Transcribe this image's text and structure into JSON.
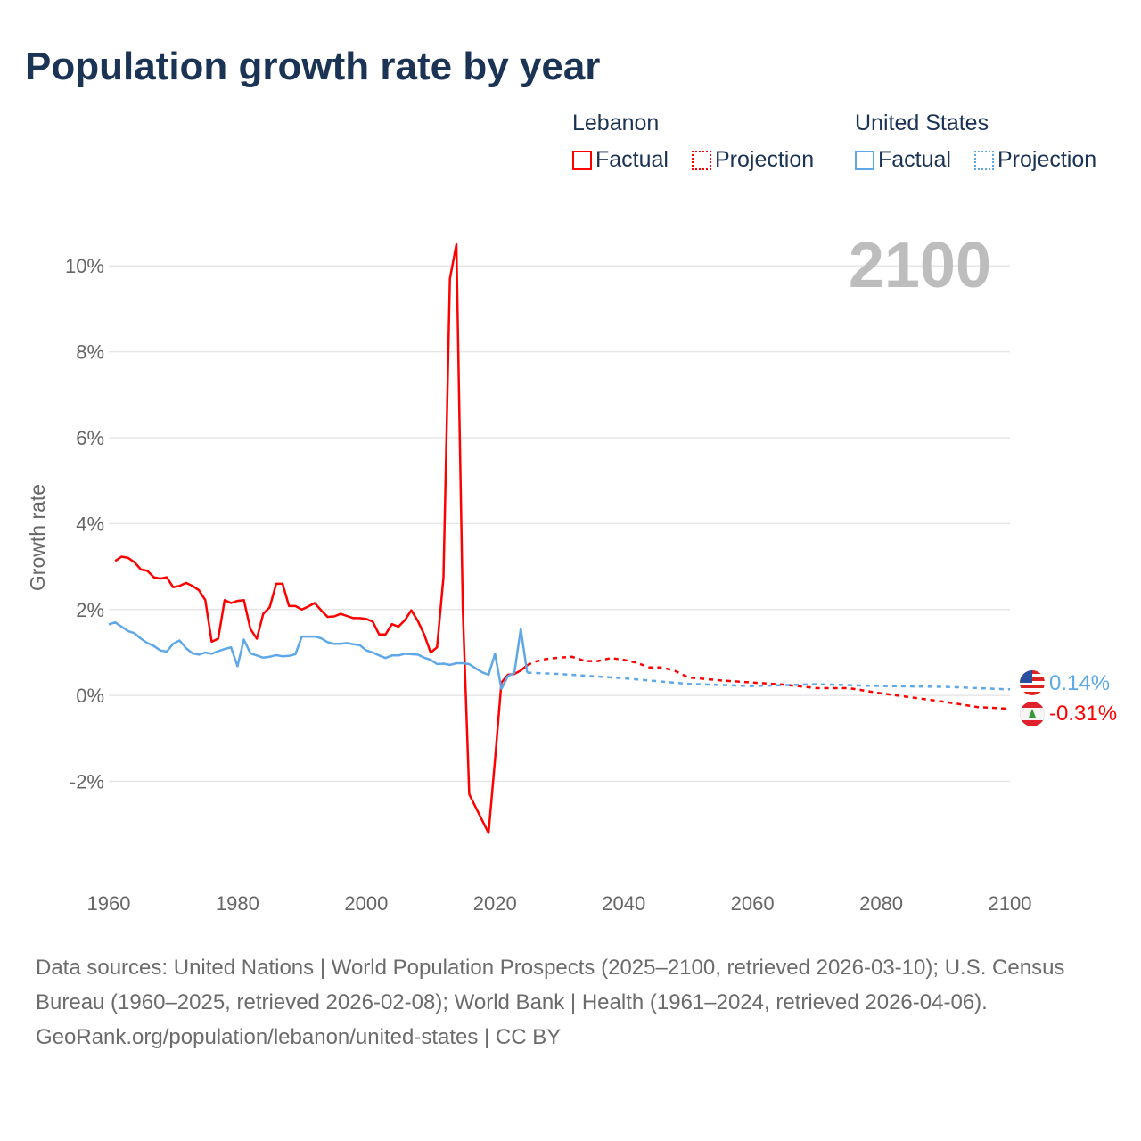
{
  "title": "Population growth rate by year",
  "year_label": "2100",
  "legend": {
    "groups": [
      {
        "name": "Lebanon",
        "color": "#ff0000",
        "factual": "Factual",
        "projection": "Projection"
      },
      {
        "name": "United States",
        "color": "#5fa8e8",
        "factual": "Factual",
        "projection": "Projection"
      }
    ]
  },
  "end_labels": {
    "united_states": "0.14%",
    "lebanon": "-0.31%"
  },
  "source": {
    "line1": "Data sources: United Nations | World Population Prospects (2025–2100, retrieved 2026-03-10); U.S. Census Bureau (1960–2025, retrieved 2026-02-08); World Bank | Health (1961–2024, retrieved 2026-04-06).",
    "line2": "GeoRank.org/population/lebanon/united-states | CC BY"
  },
  "chart_data": {
    "type": "line",
    "title": "Population growth rate by year",
    "xlabel": "",
    "ylabel": "Growth rate",
    "xlim": [
      1960,
      2100
    ],
    "ylim": [
      -4.25,
      11
    ],
    "xticks": [
      1960,
      1980,
      2000,
      2020,
      2040,
      2060,
      2080,
      2100
    ],
    "xtick_labels": [
      "1960",
      "1980",
      "2000",
      "2020",
      "2040",
      "2060",
      "2080",
      "2100"
    ],
    "yticks": [
      -2,
      0,
      2,
      4,
      6,
      8,
      10
    ],
    "ytick_labels": [
      "-2%",
      "0%",
      "2%",
      "4%",
      "6%",
      "8%",
      "10%"
    ],
    "grid": true,
    "legend_position": "top-right",
    "series": [
      {
        "name": "Lebanon Factual",
        "color": "#ff0000",
        "dashed": false,
        "x": [
          1961,
          1962,
          1963,
          1964,
          1965,
          1966,
          1967,
          1968,
          1969,
          1970,
          1971,
          1972,
          1973,
          1974,
          1975,
          1976,
          1977,
          1978,
          1979,
          1980,
          1981,
          1982,
          1983,
          1984,
          1985,
          1986,
          1987,
          1988,
          1989,
          1990,
          1991,
          1992,
          1993,
          1994,
          1995,
          1996,
          1997,
          1998,
          1999,
          2000,
          2001,
          2002,
          2003,
          2004,
          2005,
          2006,
          2007,
          2008,
          2009,
          2010,
          2011,
          2012,
          2013,
          2014,
          2015,
          2016,
          2017,
          2018,
          2019,
          2020,
          2021,
          2022,
          2023,
          2024,
          2025
        ],
        "y": [
          3.13,
          3.23,
          3.2,
          3.1,
          2.93,
          2.9,
          2.75,
          2.72,
          2.75,
          2.52,
          2.55,
          2.62,
          2.55,
          2.45,
          2.22,
          1.25,
          1.32,
          2.22,
          2.15,
          2.2,
          2.22,
          1.55,
          1.32,
          1.9,
          2.05,
          2.6,
          2.6,
          2.08,
          2.08,
          2.0,
          2.07,
          2.15,
          1.98,
          1.83,
          1.84,
          1.9,
          1.85,
          1.8,
          1.8,
          1.78,
          1.72,
          1.42,
          1.42,
          1.66,
          1.6,
          1.75,
          1.98,
          1.74,
          1.42,
          1.0,
          1.12,
          2.75,
          9.7,
          10.5,
          2.0,
          -2.3,
          -2.6,
          -2.9,
          -3.2,
          -1.5,
          0.3,
          0.48,
          0.5,
          0.58,
          0.7
        ]
      },
      {
        "name": "Lebanon Projection",
        "color": "#ff0000",
        "dashed": true,
        "x": [
          2025,
          2026,
          2028,
          2030,
          2032,
          2034,
          2036,
          2038,
          2040,
          2042,
          2044,
          2046,
          2048,
          2050,
          2055,
          2060,
          2065,
          2070,
          2075,
          2080,
          2085,
          2090,
          2095,
          2100
        ],
        "y": [
          0.7,
          0.78,
          0.85,
          0.88,
          0.9,
          0.8,
          0.8,
          0.87,
          0.83,
          0.76,
          0.65,
          0.65,
          0.57,
          0.42,
          0.35,
          0.3,
          0.25,
          0.17,
          0.17,
          0.05,
          -0.05,
          -0.15,
          -0.27,
          -0.31
        ]
      },
      {
        "name": "United States Factual",
        "color": "#5fa8e8",
        "dashed": false,
        "x": [
          1960,
          1961,
          1962,
          1963,
          1964,
          1965,
          1966,
          1967,
          1968,
          1969,
          1970,
          1971,
          1972,
          1973,
          1974,
          1975,
          1976,
          1977,
          1978,
          1979,
          1980,
          1981,
          1982,
          1983,
          1984,
          1985,
          1986,
          1987,
          1988,
          1989,
          1990,
          1991,
          1992,
          1993,
          1994,
          1995,
          1996,
          1997,
          1998,
          1999,
          2000,
          2001,
          2002,
          2003,
          2004,
          2005,
          2006,
          2007,
          2008,
          2009,
          2010,
          2011,
          2012,
          2013,
          2014,
          2015,
          2016,
          2017,
          2018,
          2019,
          2020,
          2021,
          2022,
          2023,
          2024,
          2025
        ],
        "y": [
          1.65,
          1.7,
          1.6,
          1.5,
          1.45,
          1.32,
          1.22,
          1.15,
          1.05,
          1.02,
          1.2,
          1.28,
          1.1,
          0.98,
          0.95,
          1.0,
          0.97,
          1.03,
          1.08,
          1.12,
          0.68,
          1.3,
          0.98,
          0.93,
          0.88,
          0.9,
          0.94,
          0.91,
          0.92,
          0.96,
          1.37,
          1.37,
          1.37,
          1.33,
          1.24,
          1.2,
          1.2,
          1.22,
          1.19,
          1.17,
          1.05,
          1.0,
          0.93,
          0.87,
          0.93,
          0.93,
          0.97,
          0.96,
          0.95,
          0.88,
          0.83,
          0.73,
          0.74,
          0.71,
          0.75,
          0.75,
          0.73,
          0.63,
          0.54,
          0.48,
          0.97,
          0.15,
          0.45,
          0.52,
          1.55,
          0.53
        ]
      },
      {
        "name": "United States Projection",
        "color": "#5fa8e8",
        "dashed": true,
        "x": [
          2025,
          2030,
          2040,
          2050,
          2060,
          2070,
          2080,
          2090,
          2100
        ],
        "y": [
          0.53,
          0.5,
          0.4,
          0.27,
          0.22,
          0.26,
          0.22,
          0.2,
          0.14
        ]
      }
    ]
  }
}
